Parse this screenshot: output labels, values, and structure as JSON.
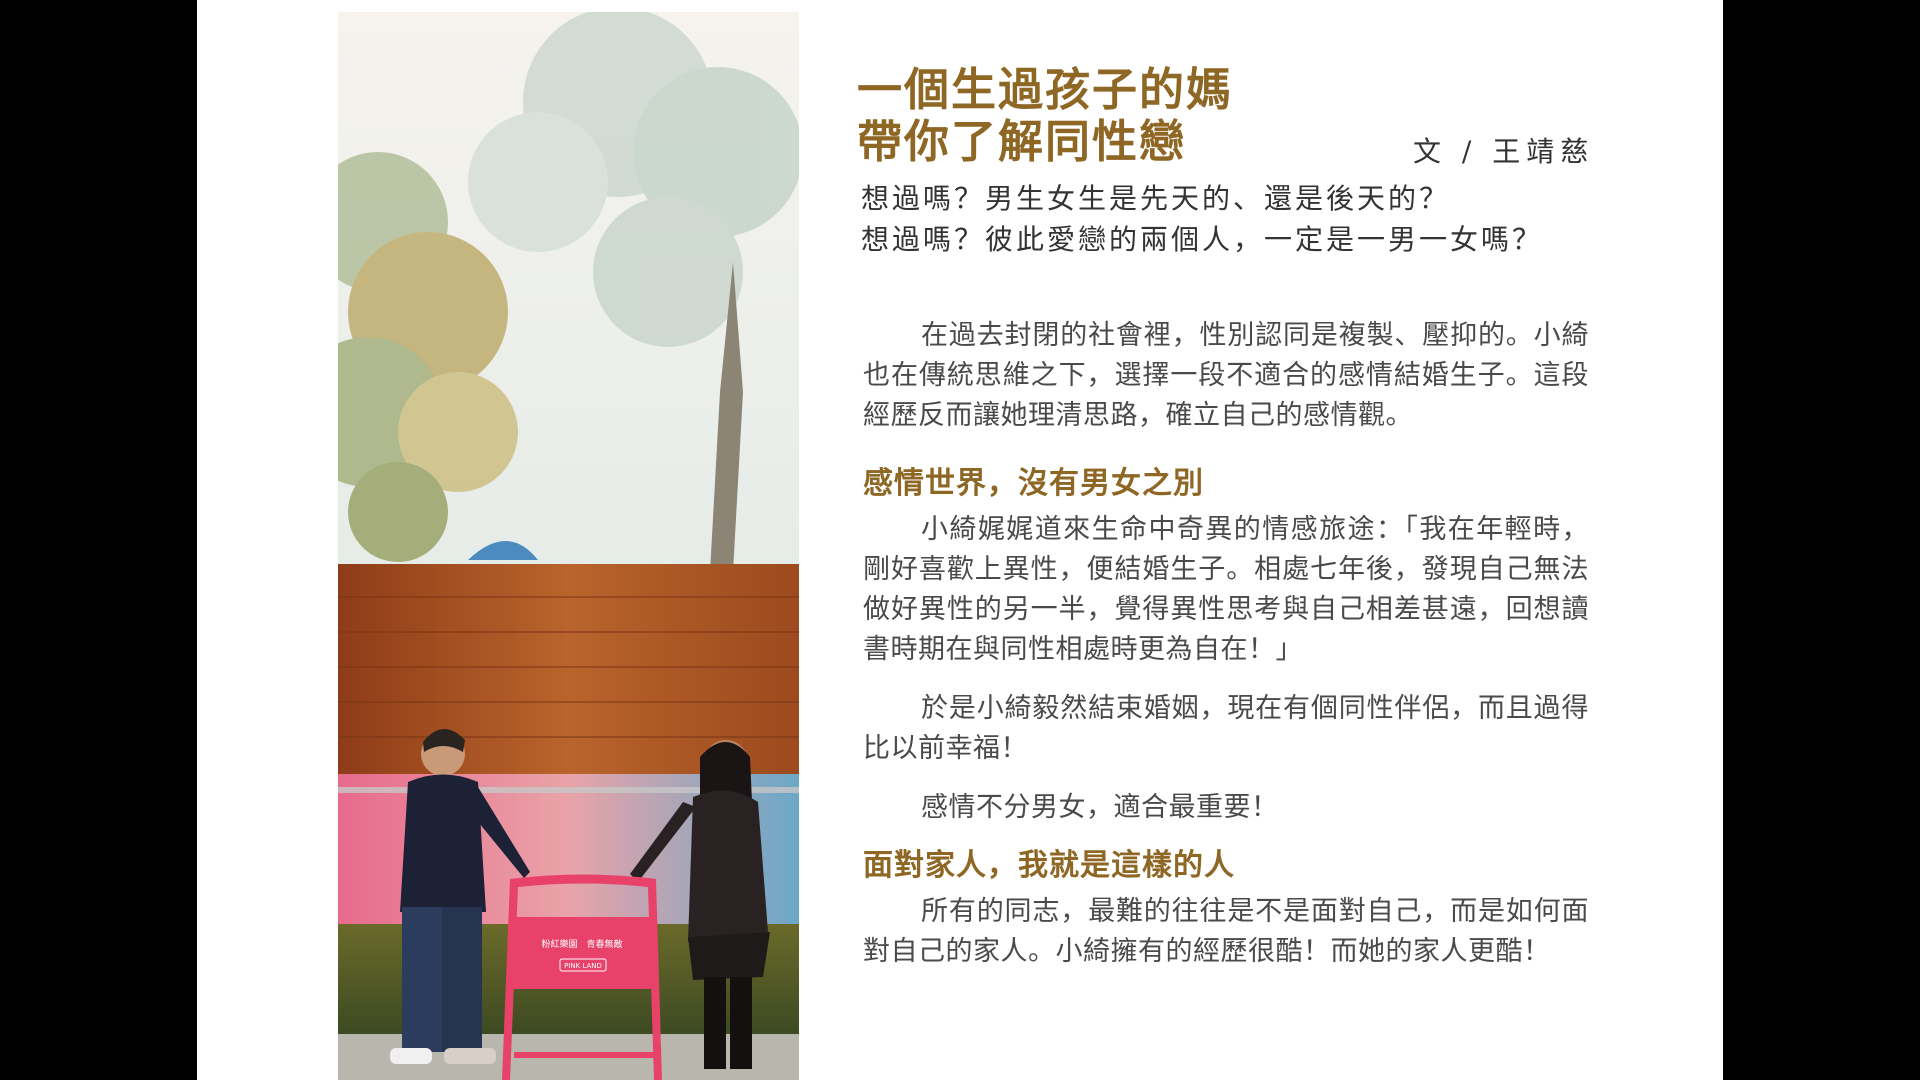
{
  "article": {
    "title_line1": "一個生過孩子的媽",
    "title_line2": "帶你了解同性戀",
    "author": "文 / 王靖慈",
    "intro_line1": "想過嗎？男生女生是先天的、還是後天的？",
    "intro_line2": "想過嗎？彼此愛戀的兩個人，一定是一男一女嗎？",
    "paragraph1": "在過去封閉的社會裡，性別認同是複製、壓抑的。小綺也在傳統思維之下，選擇一段不適合的感情結婚生子。這段經歷反而讓她理清思路，確立自己的感情觀。",
    "heading1": "感情世界，沒有男女之別",
    "paragraph2": "小綺娓娓道來生命中奇異的情感旅途：「我在年輕時，剛好喜歡上異性，便結婚生子。相處七年後，發現自己無法做好異性的另一半，覺得異性思考與自己相差甚遠，回想讀書時期在與同性相處時更為自在！」",
    "paragraph3": "於是小綺毅然結束婚姻，現在有個同性伴侶，而且過得比以前幸福！",
    "paragraph4": "感情不分男女，適合最重要！",
    "heading2": "面對家人，我就是這樣的人",
    "paragraph5": "所有的同志，最難的往往是不是面對自己，而是如何面對自己的家人。小綺擁有的經歷很酷！而她的家人更酷！"
  },
  "photo": {
    "sign_text_1": "粉紅樂園　青春無敵",
    "sign_text_2": "PINK LAND"
  },
  "colors": {
    "heading": "#8e6724",
    "body_text": "#4a4a4a",
    "background": "#000000",
    "page": "#ffffff"
  }
}
